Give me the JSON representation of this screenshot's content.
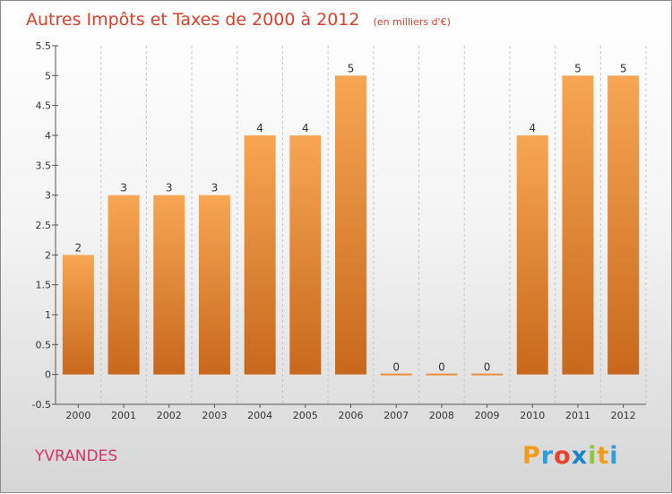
{
  "chart_data": {
    "type": "bar",
    "title": "Autres Impôts et Taxes de 2000 à 2012",
    "subtitle": "(en milliers d'€)",
    "categories": [
      "2000",
      "2001",
      "2002",
      "2003",
      "2004",
      "2005",
      "2006",
      "2007",
      "2008",
      "2009",
      "2010",
      "2011",
      "2012"
    ],
    "values": [
      2,
      3,
      3,
      3,
      4,
      4,
      5,
      0,
      0,
      0,
      4,
      5,
      5
    ],
    "data_labels": [
      "2",
      "3",
      "3",
      "3",
      "4",
      "4",
      "5",
      "0",
      "0",
      "0",
      "4",
      "5",
      "5"
    ],
    "y_ticks": [
      "-0.5",
      "0",
      "0.5",
      "1",
      "1.5",
      "2",
      "2.5",
      "3",
      "3.5",
      "4",
      "4.5",
      "5",
      "5.5"
    ],
    "ylim": [
      -0.5,
      5.5
    ],
    "xlabel": "",
    "ylabel": "",
    "grid": "vertical dashed",
    "colors": {
      "bar_top": "#f7a654",
      "bar_bottom": "#c8681c",
      "title": "#d9402a"
    }
  },
  "footer": {
    "commune": "YVRANDES",
    "logo": "Proxiti"
  }
}
